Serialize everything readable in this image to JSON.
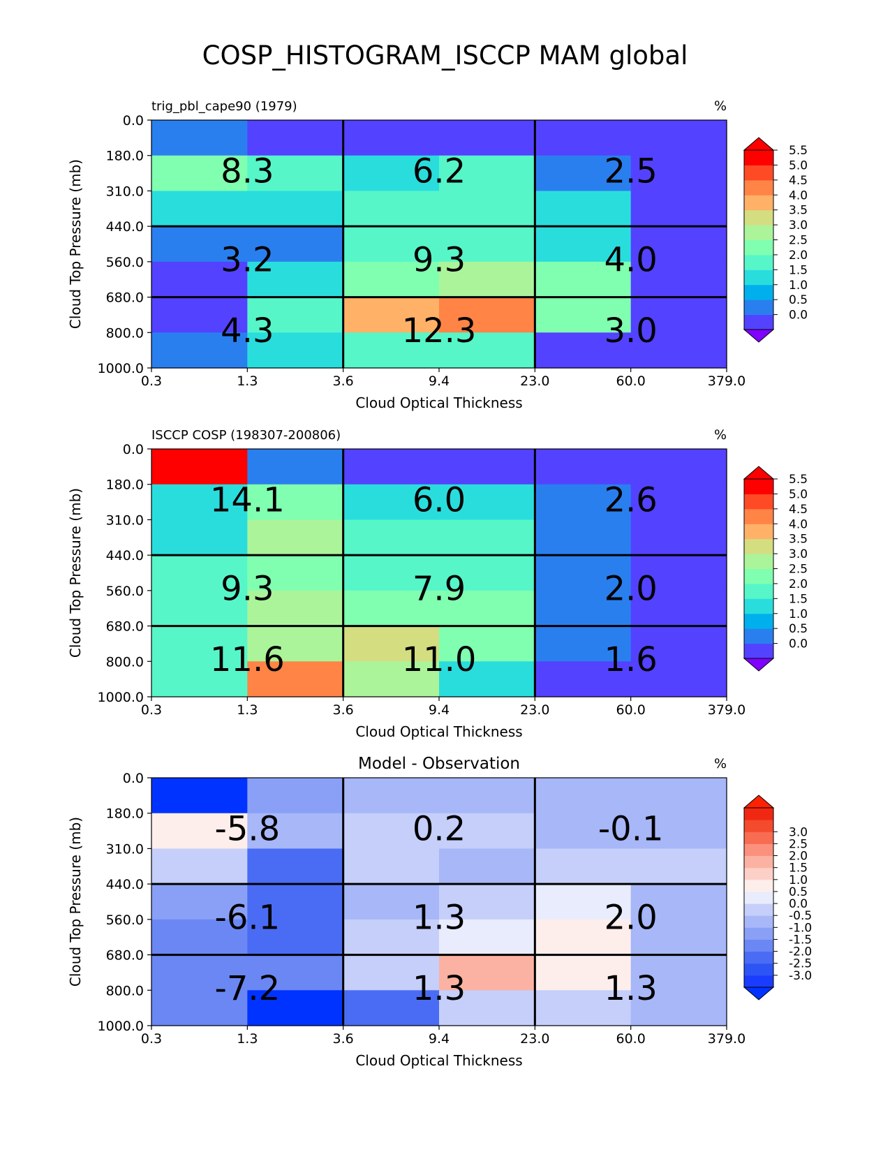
{
  "figure": {
    "title": "COSP_HISTOGRAM_ISCCP MAM global"
  },
  "chart_data": [
    {
      "type": "heatmap",
      "title": "trig_pbl_cape90 (1979)",
      "units": "%",
      "xlabel": "Cloud Optical Thickness",
      "ylabel": "Cloud Top Pressure (mb)",
      "x_edges": [
        "0.3",
        "1.3",
        "3.6",
        "9.4",
        "23.0",
        "60.0",
        "379.0"
      ],
      "y_edges": [
        "0.0",
        "180.0",
        "310.0",
        "440.0",
        "560.0",
        "680.0",
        "800.0",
        "1000.0"
      ],
      "values": [
        [
          0.9,
          0.3,
          0.3,
          0.3,
          0.3,
          0.3
        ],
        [
          2.7,
          2.2,
          1.5,
          2.2,
          0.9,
          0.3
        ],
        [
          1.5,
          1.5,
          2.2,
          2.2,
          1.5,
          0.3
        ],
        [
          0.9,
          0.9,
          2.2,
          2.2,
          1.5,
          0.3
        ],
        [
          0.3,
          1.5,
          2.7,
          3.2,
          2.5,
          0.3
        ],
        [
          0.3,
          2.2,
          4.2,
          4.7,
          2.5,
          0.3
        ],
        [
          0.9,
          1.5,
          2.2,
          2.2,
          0.3,
          0.3
        ]
      ],
      "region_labels": [
        [
          "8.3",
          "6.2",
          "2.5"
        ],
        [
          "3.2",
          "9.3",
          "4.0"
        ],
        [
          "4.3",
          "12.3",
          "3.0"
        ]
      ],
      "colorbar": {
        "ticks": [
          "0.0",
          "0.5",
          "1.0",
          "1.5",
          "2.0",
          "2.5",
          "3.0",
          "3.5",
          "4.0",
          "4.5",
          "5.0",
          "5.5"
        ],
        "levels": [
          0,
          0.5,
          1,
          1.5,
          2,
          2.5,
          3,
          3.5,
          4,
          4.5,
          5,
          5.5
        ],
        "colors": [
          "#5342ff",
          "#2a7fef",
          "#00b0ec",
          "#2adddd",
          "#56f6c9",
          "#80ffb0",
          "#abf49a",
          "#d4dd80",
          "#ffb168",
          "#ff8446",
          "#ff4a26",
          "#ff0000"
        ],
        "under": "#8000ff",
        "over": "#ff0000"
      }
    },
    {
      "type": "heatmap",
      "title": "ISCCP COSP (198307-200806)",
      "units": "%",
      "xlabel": "Cloud Optical Thickness",
      "ylabel": "Cloud Top Pressure (mb)",
      "x_edges": [
        "0.3",
        "1.3",
        "3.6",
        "9.4",
        "23.0",
        "60.0",
        "379.0"
      ],
      "y_edges": [
        "0.0",
        "180.0",
        "310.0",
        "440.0",
        "560.0",
        "680.0",
        "800.0",
        "1000.0"
      ],
      "values": [
        [
          6.0,
          0.9,
          0.3,
          0.3,
          0.3,
          0.3
        ],
        [
          1.5,
          2.5,
          1.5,
          1.5,
          0.9,
          0.3
        ],
        [
          1.5,
          3.2,
          2.2,
          2.2,
          0.9,
          0.3
        ],
        [
          2.2,
          2.7,
          2.2,
          2.2,
          0.9,
          0.3
        ],
        [
          2.2,
          3.2,
          2.5,
          2.5,
          0.9,
          0.3
        ],
        [
          2.2,
          3.2,
          3.7,
          2.7,
          0.9,
          0.3
        ],
        [
          2.2,
          4.7,
          3.2,
          1.5,
          0.3,
          0.3
        ]
      ],
      "region_labels": [
        [
          "14.1",
          "6.0",
          "2.6"
        ],
        [
          "9.3",
          "7.9",
          "2.0"
        ],
        [
          "11.6",
          "11.0",
          "1.6"
        ]
      ],
      "colorbar": {
        "ticks": [
          "0.0",
          "0.5",
          "1.0",
          "1.5",
          "2.0",
          "2.5",
          "3.0",
          "3.5",
          "4.0",
          "4.5",
          "5.0",
          "5.5"
        ],
        "levels": [
          0,
          0.5,
          1,
          1.5,
          2,
          2.5,
          3,
          3.5,
          4,
          4.5,
          5,
          5.5
        ],
        "colors": [
          "#5342ff",
          "#2a7fef",
          "#00b0ec",
          "#2adddd",
          "#56f6c9",
          "#80ffb0",
          "#abf49a",
          "#d4dd80",
          "#ffb168",
          "#ff8446",
          "#ff4a26",
          "#ff0000"
        ],
        "under": "#8000ff",
        "over": "#ff0000"
      }
    },
    {
      "type": "heatmap",
      "title": "Model - Observation",
      "units": "%",
      "xlabel": "Cloud Optical Thickness",
      "ylabel": "Cloud Top Pressure (mb)",
      "x_edges": [
        "0.3",
        "1.3",
        "3.6",
        "9.4",
        "23.0",
        "60.0",
        "379.0"
      ],
      "y_edges": [
        "0.0",
        "180.0",
        "310.0",
        "440.0",
        "560.0",
        "680.0",
        "800.0",
        "1000.0"
      ],
      "values": [
        [
          -3.5,
          -0.8,
          -0.2,
          -0.2,
          -0.2,
          -0.2
        ],
        [
          1.2,
          -0.2,
          0.2,
          0.2,
          -0.2,
          -0.2
        ],
        [
          0.2,
          -1.7,
          0.2,
          -0.2,
          0.2,
          0.2
        ],
        [
          -0.8,
          -1.7,
          -0.2,
          0.2,
          0.7,
          -0.2
        ],
        [
          -1.2,
          -1.7,
          0.2,
          0.7,
          1.2,
          -0.2
        ],
        [
          -1.2,
          -1.2,
          0.2,
          2.2,
          1.2,
          -0.2
        ],
        [
          -1.2,
          -3.5,
          -1.7,
          0.2,
          0.2,
          -0.2
        ]
      ],
      "region_labels": [
        [
          "-5.8",
          "0.2",
          "-0.1"
        ],
        [
          "-6.1",
          "1.3",
          "2.0"
        ],
        [
          "-7.2",
          "1.3",
          "1.3"
        ]
      ],
      "colorbar": {
        "ticks": [
          "-3.0",
          "-2.5",
          "-2.0",
          "-1.5",
          "-1.0",
          "-0.5",
          "0.0",
          "0.5",
          "1.0",
          "1.5",
          "2.0",
          "2.5",
          "3.0"
        ],
        "levels": [
          -3,
          -2.5,
          -2,
          -1.5,
          -1,
          -0.5,
          0,
          0.5,
          1,
          1.5,
          2,
          2.5,
          3
        ],
        "colors": [
          "#1a3cff",
          "#2d55f5",
          "#4a6cf4",
          "#6a87f4",
          "#8aa0f6",
          "#a7b7f8",
          "#c5cffa",
          "#e8ecfc",
          "#fdeeeb",
          "#fdd0c7",
          "#fcb2a2",
          "#fb917d",
          "#f86c52",
          "#f44a2e",
          "#f02812"
        ],
        "under": "#0033ff",
        "over": "#ff2200"
      }
    }
  ]
}
